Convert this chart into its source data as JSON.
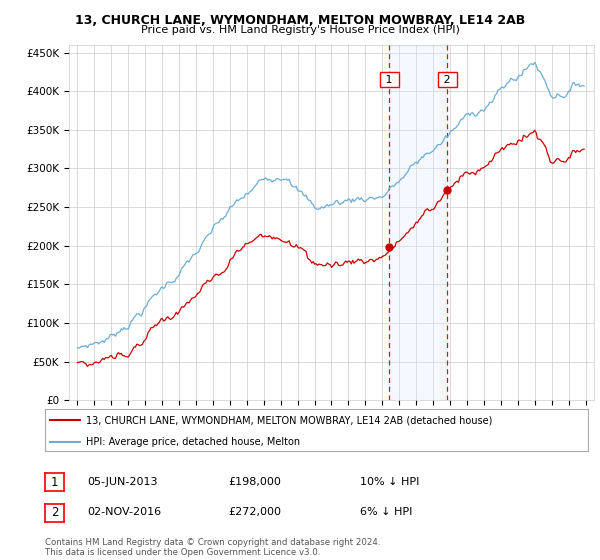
{
  "title1": "13, CHURCH LANE, WYMONDHAM, MELTON MOWBRAY, LE14 2AB",
  "title2": "Price paid vs. HM Land Registry's House Price Index (HPI)",
  "legend_line1": "13, CHURCH LANE, WYMONDHAM, MELTON MOWBRAY, LE14 2AB (detached house)",
  "legend_line2": "HPI: Average price, detached house, Melton",
  "sale1_date": "05-JUN-2013",
  "sale1_price": "£198,000",
  "sale1_hpi": "10% ↓ HPI",
  "sale2_date": "02-NOV-2016",
  "sale2_price": "£272,000",
  "sale2_hpi": "6% ↓ HPI",
  "footer": "Contains HM Land Registry data © Crown copyright and database right 2024.\nThis data is licensed under the Open Government Licence v3.0.",
  "sale1_year": 2013.42,
  "sale2_year": 2016.84,
  "sale1_value": 198000,
  "sale2_value": 272000,
  "hpi_color": "#6baed6",
  "price_color": "#cc0000",
  "grid_color": "#cccccc",
  "background_color": "#ffffff",
  "shaded_color": "#ddeeff",
  "ylim": [
    0,
    460000
  ],
  "xlim_start": 1994.5,
  "xlim_end": 2025.5,
  "yticks": [
    0,
    50000,
    100000,
    150000,
    200000,
    250000,
    300000,
    350000,
    400000,
    450000
  ],
  "ytick_labels": [
    "£0",
    "£50K",
    "£100K",
    "£150K",
    "£200K",
    "£250K",
    "£300K",
    "£350K",
    "£400K",
    "£450K"
  ]
}
